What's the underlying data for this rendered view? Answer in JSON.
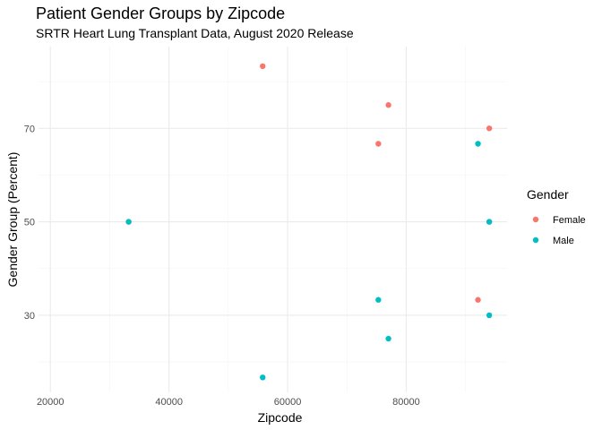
{
  "chart_data": {
    "type": "scatter",
    "title": "Patient Gender Groups by Zipcode",
    "subtitle": "SRTR Heart Lung Transplant Data, August 2020 Release",
    "xlabel": "Zipcode",
    "ylabel": "Gender Group (Percent)",
    "xlim": [
      18000,
      97000
    ],
    "ylim": [
      13.5,
      87.5
    ],
    "x_ticks": [
      20000,
      40000,
      60000,
      80000
    ],
    "x_tick_labels": [
      "20000",
      "40000",
      "60000",
      "80000"
    ],
    "y_ticks": [
      30,
      50,
      70
    ],
    "y_tick_labels": [
      "30",
      "50",
      "70"
    ],
    "grid": true,
    "legend": {
      "title": "Gender",
      "position": "right"
    },
    "series": [
      {
        "name": "Female",
        "color": "#F8766D",
        "points": [
          {
            "x": 55800,
            "y": 83.3
          },
          {
            "x": 77000,
            "y": 75.0
          },
          {
            "x": 75300,
            "y": 66.7
          },
          {
            "x": 94000,
            "y": 70.0
          },
          {
            "x": 33200,
            "y": 50.0
          },
          {
            "x": 94000,
            "y": 50.0
          },
          {
            "x": 92100,
            "y": 33.3
          }
        ]
      },
      {
        "name": "Male",
        "color": "#00BFC4",
        "points": [
          {
            "x": 92100,
            "y": 66.7
          },
          {
            "x": 33200,
            "y": 50.0
          },
          {
            "x": 94000,
            "y": 50.0
          },
          {
            "x": 75300,
            "y": 33.3
          },
          {
            "x": 94000,
            "y": 30.0
          },
          {
            "x": 77000,
            "y": 25.0
          },
          {
            "x": 55800,
            "y": 16.7
          }
        ]
      }
    ]
  }
}
